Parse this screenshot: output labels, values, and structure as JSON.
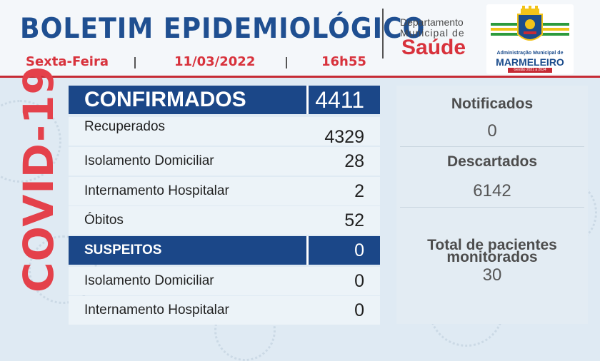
{
  "header": {
    "title": "BOLETIM EPIDEMIOLÓGICO",
    "day": "Sexta-Feira",
    "date": "11/03/2022",
    "time": "16h55",
    "department_line1": "Departamento",
    "department_line2": "Municipal de",
    "department_name": "Saúde"
  },
  "logo": {
    "line1": "Administração Municipal de",
    "line2": "MARMELEIRO",
    "line3": "Gestão 2021 a 2024"
  },
  "side_label": "COVID-19",
  "table": {
    "confirmed_label": "CONFIRMADOS",
    "confirmed_value": "4411",
    "recovered_label": "Recuperados",
    "recovered_value": "4329",
    "home_isolation_label": "Isolamento Domiciliar",
    "home_isolation_value": "28",
    "hospital_label": "Internamento Hospitalar",
    "hospital_value": "2",
    "deaths_label": "Óbitos",
    "deaths_value": "52",
    "suspects_label": "SUSPEITOS",
    "suspects_value": "0",
    "suspects_home_label": "Isolamento Domiciliar",
    "suspects_home_value": "0",
    "suspects_hospital_label": "Internamento Hospitalar",
    "suspects_hospital_value": "0"
  },
  "side_panel": {
    "notified_label": "Notificados",
    "notified_value": "0",
    "discarded_label": "Descartados",
    "discarded_value": "6142",
    "monitored_label_line1": "Total de pacientes",
    "monitored_label_line2": "monitorados",
    "monitored_value": "30"
  },
  "colors": {
    "primary_blue": "#1b4788",
    "accent_red": "#d8323c",
    "background": "#dfeaf3"
  }
}
